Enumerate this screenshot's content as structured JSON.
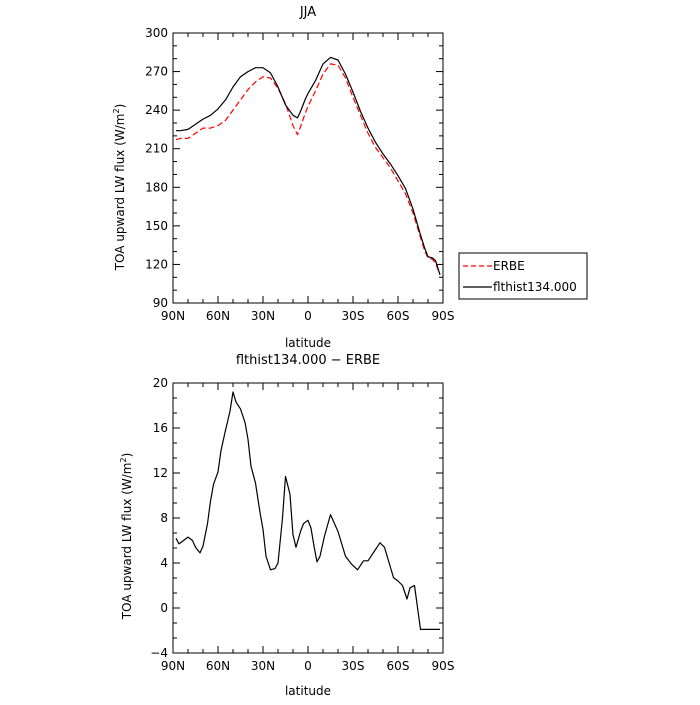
{
  "chart_data": [
    {
      "type": "line",
      "title": "JJA",
      "xlabel": "latitude",
      "ylabel_main": "TOA upward LW flux (W/m",
      "ylabel_sup": "2",
      "ylabel_close": ")",
      "xlim": [
        90,
        -90
      ],
      "ylim": [
        90,
        300
      ],
      "x_ticks": [
        90,
        60,
        30,
        0,
        -30,
        -60,
        -90
      ],
      "x_tick_labels": [
        "90N",
        "60N",
        "30N",
        "0",
        "30S",
        "60S",
        "90S"
      ],
      "y_ticks": [
        90,
        120,
        150,
        180,
        210,
        240,
        270,
        300
      ],
      "y_tick_labels": [
        "90",
        "120",
        "150",
        "180",
        "210",
        "240",
        "270",
        "300"
      ],
      "legend_position": "right",
      "series": [
        {
          "name": "ERBE",
          "color": "#ff0000",
          "style": "dashed",
          "x": [
            88,
            85,
            80,
            75,
            70,
            65,
            60,
            55,
            50,
            45,
            40,
            35,
            30,
            25,
            20,
            15,
            10,
            7,
            5,
            2,
            0,
            -5,
            -10,
            -15,
            -20,
            -25,
            -30,
            -35,
            -40,
            -45,
            -50,
            -55,
            -60,
            -65,
            -70,
            -75,
            -78,
            -80,
            -83,
            -85,
            -88
          ],
          "y": [
            217,
            218,
            218,
            222,
            226,
            226,
            228,
            232,
            240,
            248,
            256,
            262,
            266,
            265,
            257,
            245,
            228,
            221,
            227,
            237,
            243,
            255,
            268,
            276,
            275,
            265,
            250,
            236,
            222,
            211,
            203,
            195,
            185,
            175,
            160,
            141,
            130,
            125,
            124,
            121,
            112
          ]
        },
        {
          "name": "flthist134.000",
          "color": "#000000",
          "style": "solid",
          "x": [
            88,
            85,
            80,
            75,
            70,
            65,
            60,
            55,
            50,
            45,
            40,
            35,
            30,
            25,
            20,
            15,
            10,
            7,
            5,
            2,
            0,
            -5,
            -10,
            -15,
            -20,
            -25,
            -30,
            -35,
            -40,
            -45,
            -50,
            -55,
            -60,
            -65,
            -70,
            -75,
            -78,
            -80,
            -83,
            -85,
            -88
          ],
          "y": [
            224,
            224,
            225,
            229,
            233,
            236,
            241,
            248,
            258,
            266,
            270,
            273,
            273,
            269,
            258,
            244,
            236,
            234,
            239,
            248,
            253,
            263,
            276,
            281,
            279,
            268,
            254,
            239,
            226,
            215,
            206,
            198,
            189,
            179,
            163,
            143,
            132,
            126,
            125,
            123,
            112
          ]
        }
      ]
    },
    {
      "type": "line",
      "title": "flthist134.000 − ERBE",
      "xlabel": "latitude",
      "ylabel_main": "TOA upward LW flux (W/m",
      "ylabel_sup": "2",
      "ylabel_close": ")",
      "xlim": [
        90,
        -90
      ],
      "ylim": [
        -4,
        20
      ],
      "x_ticks": [
        90,
        60,
        30,
        0,
        -30,
        -60,
        -90
      ],
      "x_tick_labels": [
        "90N",
        "60N",
        "30N",
        "0",
        "30S",
        "60S",
        "90S"
      ],
      "y_ticks": [
        -4,
        0,
        4,
        8,
        12,
        16,
        20
      ],
      "y_tick_labels": [
        "−4",
        "0",
        "4",
        "8",
        "12",
        "16",
        "20"
      ],
      "series": [
        {
          "color": "#000000",
          "style": "solid",
          "x": [
            88,
            86,
            83,
            80,
            77,
            75,
            72,
            70,
            67,
            65,
            63,
            60,
            58,
            55,
            52,
            50,
            48,
            45,
            42,
            40,
            38,
            35,
            32,
            30,
            28,
            25,
            22,
            20,
            17,
            15,
            12,
            10,
            8,
            5,
            3,
            0,
            -2,
            -4,
            -6,
            -8,
            -11,
            -15,
            -20,
            -25,
            -29,
            -33,
            -37,
            -40,
            -45,
            -48,
            -51,
            -55,
            -57,
            -60,
            -63,
            -66,
            -68,
            -71,
            -75,
            -78,
            -80,
            -83,
            -85,
            -88
          ],
          "y": [
            6.2,
            5.7,
            6.0,
            6.3,
            6.0,
            5.4,
            4.9,
            5.5,
            7.5,
            9.5,
            11.0,
            12.1,
            14.0,
            15.8,
            17.5,
            19.2,
            18.3,
            17.7,
            16.5,
            15.0,
            12.6,
            11.1,
            8.5,
            7.0,
            4.6,
            3.4,
            3.5,
            4.0,
            8.0,
            11.7,
            10.1,
            6.5,
            5.4,
            6.8,
            7.5,
            7.8,
            7.1,
            5.5,
            4.1,
            4.6,
            6.4,
            8.3,
            6.8,
            4.6,
            3.9,
            3.4,
            4.2,
            4.2,
            5.2,
            5.8,
            5.4,
            3.6,
            2.7,
            2.4,
            2.0,
            0.8,
            1.8,
            2.0,
            -1.9,
            -1.9,
            -1.9,
            -1.9,
            -1.9,
            -1.9
          ]
        }
      ]
    }
  ]
}
